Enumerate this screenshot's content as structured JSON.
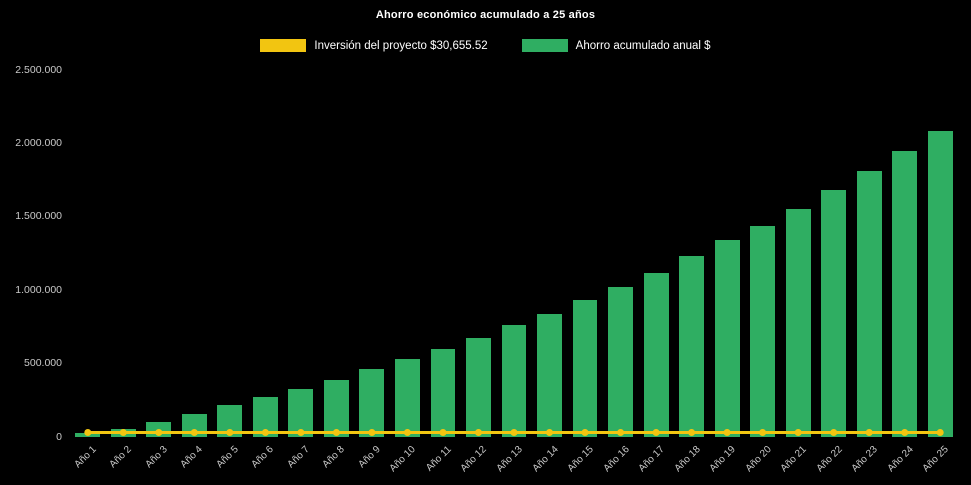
{
  "title": "Ahorro económico acumulado a 25 años",
  "colors": {
    "background": "#000000",
    "bar": "#2fae62",
    "line": "#f2c511",
    "title_text": "#ffffff",
    "axis_text": "#c9c9c9"
  },
  "legend": [
    {
      "label": "Inversión del proyecto $30,655.52",
      "color": "#f2c511"
    },
    {
      "label": "Ahorro acumulado anual $",
      "color": "#2fae62"
    }
  ],
  "chart_data": {
    "type": "bar",
    "title": "Ahorro económico acumulado a 25 años",
    "categories": [
      "Año 1",
      "Año 2",
      "Año 3",
      "Año 4",
      "Año 5",
      "Año 6",
      "Año 7",
      "Año 8",
      "Año 9",
      "Año 10",
      "Año 11",
      "Año 12",
      "Año 13",
      "Año 14",
      "Año 15",
      "Año 16",
      "Año 17",
      "Año 18",
      "Año 19",
      "Año 20",
      "Año 21",
      "Año 22",
      "Año 23",
      "Año 24",
      "Año 25"
    ],
    "series": [
      {
        "name": "Inversión del proyecto $30,655.52",
        "type": "line",
        "color": "#f2c511",
        "values": [
          30655.52,
          30655.52,
          30655.52,
          30655.52,
          30655.52,
          30655.52,
          30655.52,
          30655.52,
          30655.52,
          30655.52,
          30655.52,
          30655.52,
          30655.52,
          30655.52,
          30655.52,
          30655.52,
          30655.52,
          30655.52,
          30655.52,
          30655.52,
          30655.52,
          30655.52,
          30655.52,
          30655.52,
          30655.52
        ]
      },
      {
        "name": "Ahorro acumulado anual $",
        "type": "bar",
        "color": "#2fae62",
        "values": [
          25000,
          55000,
          100000,
          160000,
          215000,
          270000,
          330000,
          390000,
          460000,
          530000,
          600000,
          675000,
          760000,
          840000,
          930000,
          1020000,
          1120000,
          1230000,
          1340000,
          1440000,
          1555000,
          1680000,
          1810000,
          1950000,
          2085000
        ]
      }
    ],
    "ylim": [
      0,
      2500000
    ],
    "ytick_values": [
      0,
      500000,
      1000000,
      1500000,
      2000000,
      2500000
    ],
    "ytick_labels": [
      "0",
      "500.000",
      "1.000.000",
      "1.500.000",
      "2.000.000",
      "2.500.000"
    ],
    "legend_position": "top",
    "grid": false
  }
}
